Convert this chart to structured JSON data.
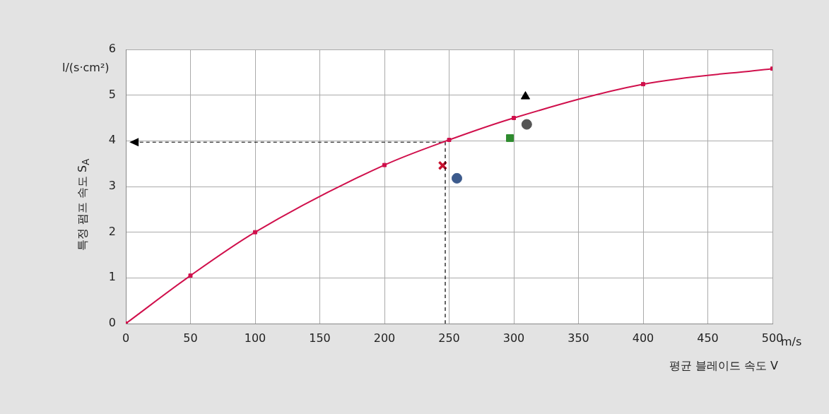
{
  "chart_data": {
    "type": "line",
    "xlabel": "평균 블레이드 속도 V",
    "ylabel": "특정 펌프 속도 S$_{A}$",
    "annotations": [
      "l/(s·cm²)",
      "m/s"
    ],
    "xlim": [
      0,
      500
    ],
    "xticks": [
      0,
      50,
      100,
      150,
      200,
      250,
      300,
      350,
      400,
      450,
      500
    ],
    "ylim": [
      0,
      6
    ],
    "yticks": [
      0,
      1,
      2,
      3,
      4,
      5,
      6
    ],
    "grid": true,
    "legend": false,
    "series": [
      {
        "color": "#d0104c",
        "marker": "square",
        "line_style": "solid",
        "x": [
          0,
          50,
          100,
          200,
          250,
          300,
          400,
          500
        ],
        "values": [
          0,
          1.05,
          2,
          3.47,
          4.02,
          4.5,
          5.24,
          5.58
        ]
      },
      {
        "color": "#000000",
        "marker": "none",
        "line_style": "dashed",
        "x": [
          247,
          247,
          5
        ],
        "values": [
          0,
          3.97,
          3.97
        ]
      },
      {
        "type": "scatter",
        "color": "#3c5a8c",
        "marker": "circle",
        "x": [
          256
        ],
        "values": [
          3.18
        ]
      },
      {
        "type": "scatter",
        "color": "#c8102e",
        "marker": "cross",
        "x": [
          245
        ],
        "values": [
          3.46
        ]
      },
      {
        "type": "scatter",
        "color": "#2e8b2e",
        "marker": "square",
        "x": [
          297
        ],
        "values": [
          4.06
        ]
      },
      {
        "type": "scatter",
        "color": "#000000",
        "marker": "triangle",
        "x": [
          309
        ],
        "values": [
          4.97
        ]
      },
      {
        "type": "scatter",
        "color": "#555555",
        "marker": "circle",
        "x": [
          310
        ],
        "values": [
          4.36
        ]
      }
    ]
  }
}
